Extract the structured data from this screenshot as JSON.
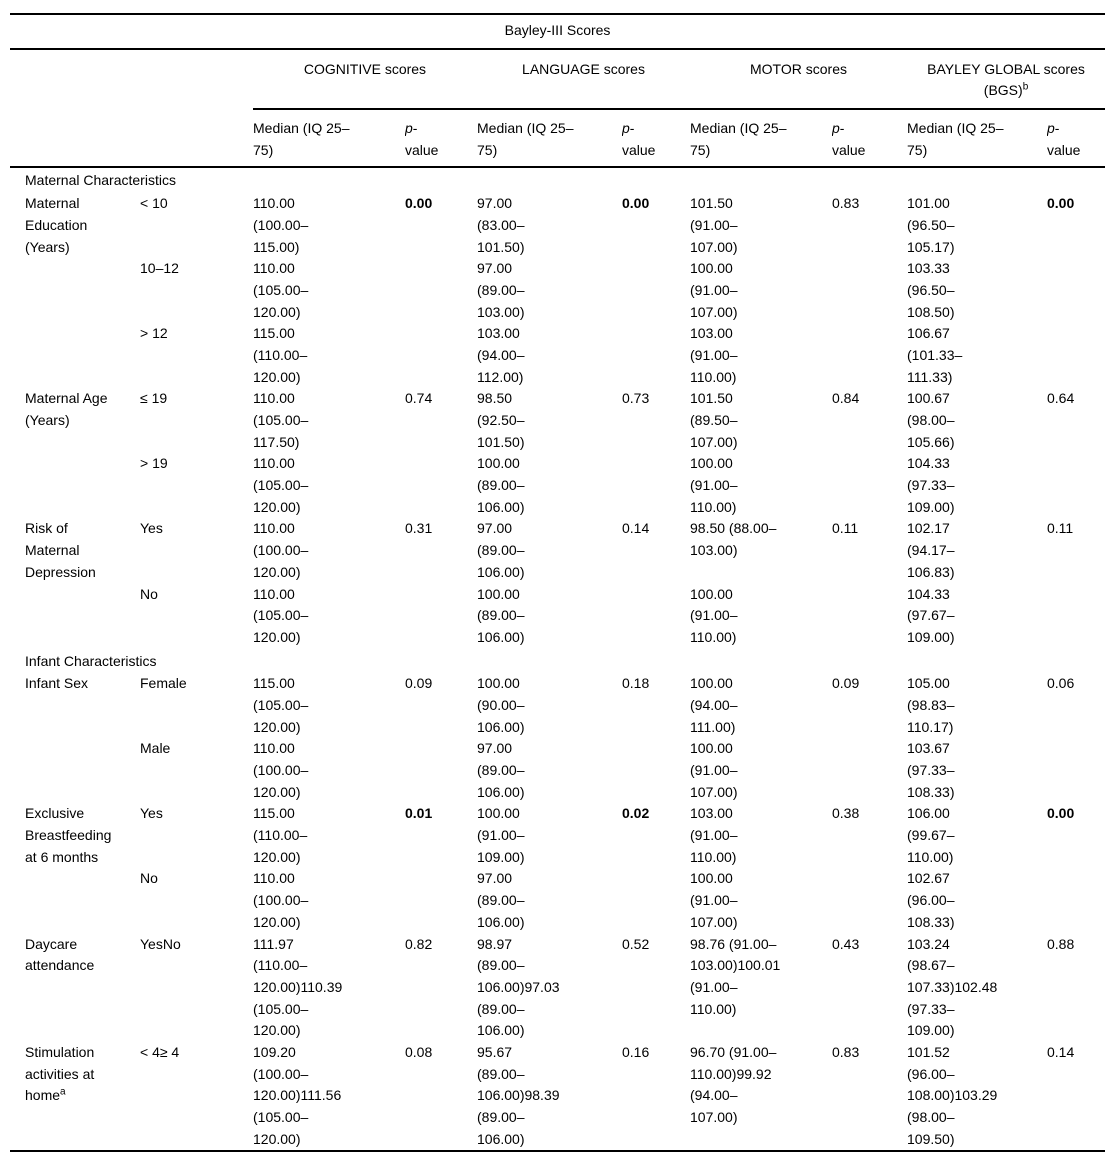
{
  "table": {
    "title": "Bayley-III Scores",
    "groups": {
      "cognitive": "COGNITIVE scores",
      "language": "LANGUAGE scores",
      "motor": "MOTOR scores",
      "bgs_line1": "BAYLEY GLOBAL scores",
      "bgs_line2": "(BGS)",
      "bgs_sup": "b"
    },
    "subheader": {
      "median": "Median (IQ 25–\n75)",
      "p_italic": "p",
      "p_hyphen": "-",
      "p_line2": "value"
    }
  },
  "rows": [
    {
      "kind": "section",
      "label": "Maternal Characteristics"
    },
    {
      "kind": "group",
      "label": "Maternal\nEducation\n(Years)",
      "sup": "",
      "p": [
        "0.00",
        "0.00",
        "0.83",
        "0.00"
      ],
      "p_bold": [
        true,
        true,
        false,
        true
      ],
      "sub": [
        {
          "level": "< 10",
          "m": [
            "110.00\n(100.00–\n115.00)",
            "97.00\n(83.00–\n101.50)",
            "101.50\n(91.00–\n107.00)",
            "101.00\n(96.50–\n105.17)"
          ]
        },
        {
          "level": "10–12",
          "m": [
            "110.00\n(105.00–\n120.00)",
            "97.00\n(89.00–\n103.00)",
            "100.00\n(91.00–\n107.00)",
            "103.33\n(96.50–\n108.50)"
          ]
        },
        {
          "level": "> 12",
          "m": [
            "115.00\n(110.00–\n120.00)",
            "103.00\n(94.00–\n112.00)",
            "103.00\n(91.00–\n110.00)",
            "106.67\n(101.33–\n111.33)"
          ]
        }
      ]
    },
    {
      "kind": "group",
      "label": "Maternal Age\n(Years)",
      "sup": "",
      "p": [
        "0.74",
        "0.73",
        "0.84",
        "0.64"
      ],
      "p_bold": [
        false,
        false,
        false,
        false
      ],
      "sub": [
        {
          "level": "≤ 19",
          "m": [
            "110.00\n(105.00–\n117.50)",
            "98.50\n(92.50–\n101.50)",
            "101.50\n(89.50–\n107.00)",
            "100.67\n(98.00–\n105.66)"
          ]
        },
        {
          "level": "> 19",
          "m": [
            "110.00\n(105.00–\n120.00)",
            "100.00\n(89.00–\n106.00)",
            "100.00\n(91.00–\n110.00)",
            "104.33\n(97.33–\n109.00)"
          ]
        }
      ]
    },
    {
      "kind": "group",
      "label": "Risk of\nMaternal\nDepression",
      "sup": "",
      "p": [
        "0.31",
        "0.14",
        "0.11",
        "0.11"
      ],
      "p_bold": [
        false,
        false,
        false,
        false
      ],
      "sub": [
        {
          "level": "Yes",
          "m": [
            "110.00\n(100.00–\n120.00)",
            "97.00\n(89.00–\n106.00)",
            "98.50 (88.00–\n103.00)",
            "102.17\n(94.17–\n106.83)"
          ]
        },
        {
          "level": "No",
          "m": [
            "110.00\n(105.00–\n120.00)",
            "100.00\n(89.00–\n106.00)",
            "100.00\n(91.00–\n110.00)",
            "104.33\n(97.67–\n109.00)"
          ]
        }
      ]
    },
    {
      "kind": "section",
      "label": "Infant Characteristics"
    },
    {
      "kind": "group",
      "label": "Infant Sex",
      "sup": "",
      "p": [
        "0.09",
        "0.18",
        "0.09",
        "0.06"
      ],
      "p_bold": [
        false,
        false,
        false,
        false
      ],
      "sub": [
        {
          "level": "Female",
          "m": [
            "115.00\n(105.00–\n120.00)",
            "100.00\n(90.00–\n106.00)",
            "100.00\n(94.00–\n111.00)",
            "105.00\n(98.83–\n110.17)"
          ]
        },
        {
          "level": "Male",
          "m": [
            "110.00\n(100.00–\n120.00)",
            "97.00\n(89.00–\n106.00)",
            "100.00\n(91.00–\n107.00)",
            "103.67\n(97.33–\n108.33)"
          ]
        }
      ]
    },
    {
      "kind": "group",
      "label": "Exclusive\nBreastfeeding\nat 6 months",
      "sup": "",
      "p": [
        "0.01",
        "0.02",
        "0.38",
        "0.00"
      ],
      "p_bold": [
        true,
        true,
        false,
        true
      ],
      "sub": [
        {
          "level": "Yes",
          "m": [
            "115.00\n(110.00–\n120.00)",
            "100.00\n(91.00–\n109.00)",
            "103.00\n(91.00–\n110.00)",
            "106.00\n(99.67–\n110.00)"
          ]
        },
        {
          "level": "No",
          "m": [
            "110.00\n(100.00–\n120.00)",
            "97.00\n(89.00–\n106.00)",
            "100.00\n(91.00–\n107.00)",
            "102.67\n(96.00–\n108.33)"
          ]
        }
      ]
    },
    {
      "kind": "group",
      "label": "Daycare\nattendance",
      "sup": "",
      "p": [
        "0.82",
        "0.52",
        "0.43",
        "0.88"
      ],
      "p_bold": [
        false,
        false,
        false,
        false
      ],
      "sub": [
        {
          "level": "YesNo",
          "m": [
            "111.97\n(110.00–\n120.00)110.39\n(105.00–\n120.00)",
            "98.97\n(89.00–\n106.00)97.03\n(89.00–\n106.00)",
            "98.76 (91.00–\n103.00)100.01\n(91.00–\n110.00)",
            "103.24\n(98.67–\n107.33)102.48\n(97.33–\n109.00)"
          ]
        }
      ]
    },
    {
      "kind": "group",
      "label": "Stimulation\nactivities at\nhome",
      "sup": "a",
      "p": [
        "0.08",
        "0.16",
        "0.83",
        "0.14"
      ],
      "p_bold": [
        false,
        false,
        false,
        false
      ],
      "sub": [
        {
          "level": "< 4≥ 4",
          "m": [
            "109.20\n(100.00–\n120.00)111.56\n(105.00–\n120.00)",
            "95.67\n(89.00–\n106.00)98.39\n(89.00–\n106.00)",
            "96.70 (91.00–\n110.00)99.92\n(94.00–\n107.00)",
            "101.52\n(96.00–\n108.00)103.29\n(98.00–\n109.50)"
          ]
        }
      ]
    }
  ]
}
